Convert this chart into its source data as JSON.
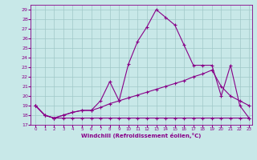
{
  "xlabel": "Windchill (Refroidissement éolien,°C)",
  "bg_color": "#c8e8e8",
  "grid_color": "#a0c8c8",
  "line_color": "#880088",
  "xlim": [
    -0.5,
    23.3
  ],
  "ylim": [
    17.0,
    29.5
  ],
  "xticks": [
    0,
    1,
    2,
    3,
    4,
    5,
    6,
    7,
    8,
    9,
    10,
    11,
    12,
    13,
    14,
    15,
    16,
    17,
    18,
    19,
    20,
    21,
    22,
    23
  ],
  "yticks": [
    17,
    18,
    19,
    20,
    21,
    22,
    23,
    24,
    25,
    26,
    27,
    28,
    29
  ],
  "line1_x": [
    0,
    1,
    2,
    3,
    4,
    5,
    6,
    7,
    8,
    9,
    10,
    11,
    12,
    13,
    14,
    15,
    16,
    17,
    18,
    19,
    20,
    21,
    22,
    23
  ],
  "line1_y": [
    19.0,
    18.0,
    17.7,
    17.7,
    17.7,
    17.7,
    17.7,
    17.7,
    17.7,
    17.7,
    17.7,
    17.7,
    17.7,
    17.7,
    17.7,
    17.7,
    17.7,
    17.7,
    17.7,
    17.7,
    17.7,
    17.7,
    17.7,
    17.7
  ],
  "line2_x": [
    0,
    1,
    2,
    3,
    4,
    5,
    6,
    7,
    8,
    9,
    10,
    11,
    12,
    13,
    14,
    15,
    16,
    17,
    18,
    19,
    20,
    21,
    22,
    23
  ],
  "line2_y": [
    19.0,
    18.0,
    17.7,
    18.0,
    18.3,
    18.5,
    18.5,
    18.8,
    19.2,
    19.5,
    19.8,
    20.1,
    20.4,
    20.7,
    21.0,
    21.3,
    21.6,
    22.0,
    22.3,
    22.7,
    21.0,
    20.0,
    19.5,
    19.0
  ],
  "line3_x": [
    0,
    1,
    2,
    3,
    4,
    5,
    6,
    7,
    8,
    9,
    10,
    11,
    12,
    13,
    14,
    15,
    16,
    17,
    18,
    19,
    20,
    21,
    22,
    23
  ],
  "line3_y": [
    19.0,
    18.0,
    17.7,
    18.0,
    18.3,
    18.5,
    18.5,
    19.5,
    21.5,
    19.5,
    23.3,
    25.7,
    27.2,
    29.0,
    28.2,
    27.4,
    25.3,
    23.2,
    23.2,
    23.2,
    20.0,
    23.2,
    19.0,
    17.7
  ]
}
